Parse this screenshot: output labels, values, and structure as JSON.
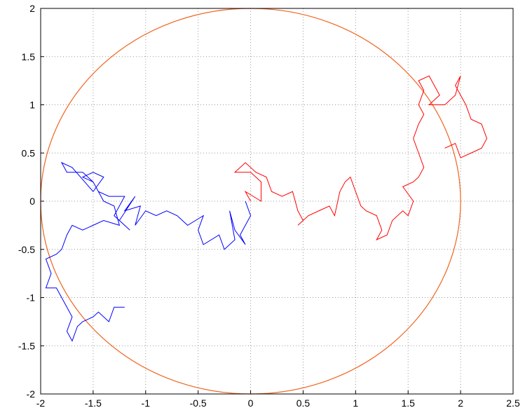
{
  "chart_data": {
    "type": "line",
    "xlim": [
      -2,
      2.5
    ],
    "ylim": [
      -2,
      2
    ],
    "xticks": [
      -2,
      -1.5,
      -1,
      -0.5,
      0,
      0.5,
      1,
      1.5,
      2,
      2.5
    ],
    "yticks": [
      -2,
      -1.5,
      -1,
      -0.5,
      0,
      0.5,
      1,
      1.5,
      2
    ],
    "grid": true,
    "circle": {
      "center": [
        0,
        0
      ],
      "radius": 2,
      "color": "#f0641e"
    },
    "series": [
      {
        "color": "#0000ff",
        "x": [
          -0.05,
          0.0,
          -0.1,
          -0.05,
          -0.15,
          -0.2,
          -0.15,
          -0.25,
          -0.3,
          -0.45,
          -0.5,
          -0.45,
          -0.6,
          -0.7,
          -0.8,
          -0.9,
          -1.0,
          -1.1,
          -1.05,
          -1.2,
          -1.1,
          -1.25,
          -1.15,
          -1.3,
          -1.2,
          -1.35,
          -1.45,
          -1.5,
          -1.6,
          -1.5,
          -1.4,
          -1.5,
          -1.7,
          -1.8,
          -1.75,
          -1.6,
          -1.5,
          -1.4,
          -1.3,
          -1.25,
          -1.4,
          -1.5,
          -1.6,
          -1.7,
          -1.75,
          -1.8,
          -1.85,
          -1.95,
          -1.9,
          -1.95,
          -1.85,
          -1.8,
          -1.75,
          -1.7,
          -1.75,
          -1.7,
          -1.65,
          -1.6,
          -1.5,
          -1.45,
          -1.35,
          -1.3,
          -1.2
        ],
        "y": [
          0.0,
          -0.15,
          -0.35,
          -0.45,
          -0.3,
          -0.1,
          -0.4,
          -0.5,
          -0.35,
          -0.45,
          -0.3,
          -0.15,
          -0.25,
          -0.15,
          -0.1,
          -0.15,
          -0.1,
          -0.25,
          -0.05,
          -0.1,
          0.05,
          -0.2,
          -0.3,
          -0.15,
          0.05,
          0.05,
          0.1,
          0.2,
          0.25,
          0.3,
          0.25,
          0.1,
          0.35,
          0.4,
          0.3,
          0.3,
          0.2,
          0.0,
          -0.05,
          -0.25,
          -0.2,
          -0.25,
          -0.3,
          -0.25,
          -0.35,
          -0.5,
          -0.55,
          -0.6,
          -0.75,
          -0.9,
          -0.9,
          -1.0,
          -1.1,
          -1.2,
          -1.35,
          -1.45,
          -1.3,
          -1.25,
          -1.2,
          -1.15,
          -1.25,
          -1.1,
          -1.1
        ]
      },
      {
        "color": "#ff0000",
        "x": [
          0.0,
          -0.05,
          0.1,
          0.1,
          0.0,
          -0.15,
          -0.05,
          0.05,
          0.15,
          0.2,
          0.3,
          0.4,
          0.45,
          0.5,
          0.45,
          0.55,
          0.65,
          0.75,
          0.8,
          0.85,
          0.9,
          0.95,
          1.0,
          1.05,
          1.1,
          1.2,
          1.25,
          1.2,
          1.3,
          1.35,
          1.45,
          1.5,
          1.55,
          1.45,
          1.55,
          1.6,
          1.65,
          1.6,
          1.55,
          1.6,
          1.65,
          1.6,
          1.65,
          1.6,
          1.7,
          1.75,
          1.8,
          1.7,
          1.85,
          1.95,
          2.0,
          1.95,
          2.05,
          2.1,
          2.2,
          2.25,
          2.2,
          2.1,
          2.0,
          1.95,
          1.85
        ],
        "y": [
          0.0,
          0.1,
          0.0,
          0.2,
          0.3,
          0.3,
          0.4,
          0.3,
          0.25,
          0.1,
          0.05,
          0.1,
          -0.1,
          -0.2,
          -0.25,
          -0.15,
          -0.1,
          -0.05,
          -0.15,
          0.1,
          0.2,
          0.25,
          0.1,
          -0.05,
          -0.1,
          -0.15,
          -0.3,
          -0.4,
          -0.35,
          -0.2,
          -0.1,
          -0.15,
          0.0,
          0.15,
          0.2,
          0.25,
          0.35,
          0.5,
          0.65,
          0.8,
          0.9,
          1.0,
          1.15,
          1.25,
          1.3,
          1.2,
          1.1,
          1.0,
          1.0,
          1.1,
          1.3,
          1.2,
          1.0,
          0.85,
          0.8,
          0.65,
          0.55,
          0.5,
          0.45,
          0.6,
          0.55
        ]
      }
    ]
  }
}
